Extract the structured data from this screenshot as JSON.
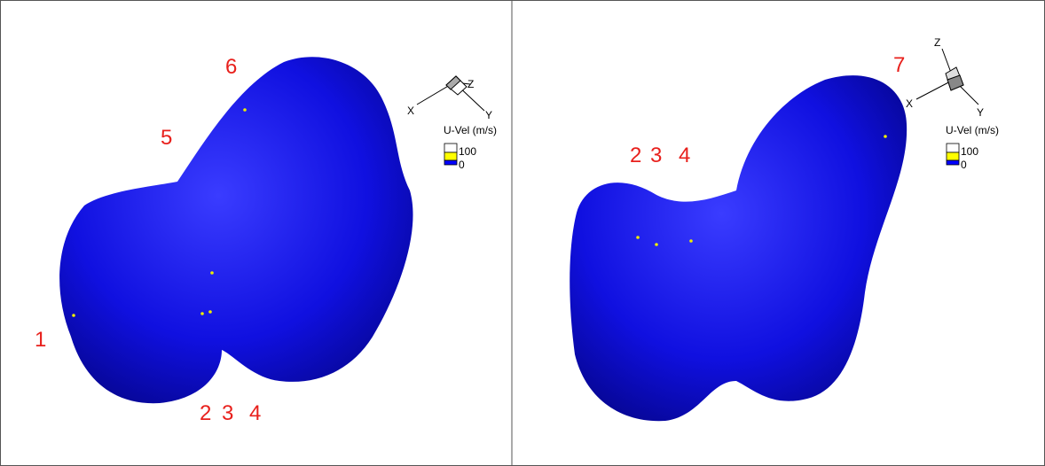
{
  "panels": [
    {
      "labels": [
        "6",
        "5",
        "1",
        "2",
        "3",
        "4"
      ],
      "legend": {
        "title": "U-Vel (m/s)",
        "ticks": [
          "100",
          "0"
        ]
      },
      "triad": {
        "x": "X",
        "y": "Y",
        "z": "Z"
      }
    },
    {
      "labels": [
        "7",
        "2",
        "3",
        "4"
      ],
      "legend": {
        "title": "U-Vel (m/s)",
        "ticks": [
          "100",
          "0"
        ]
      },
      "triad": {
        "x": "X",
        "y": "Y",
        "z": "Z"
      }
    }
  ]
}
